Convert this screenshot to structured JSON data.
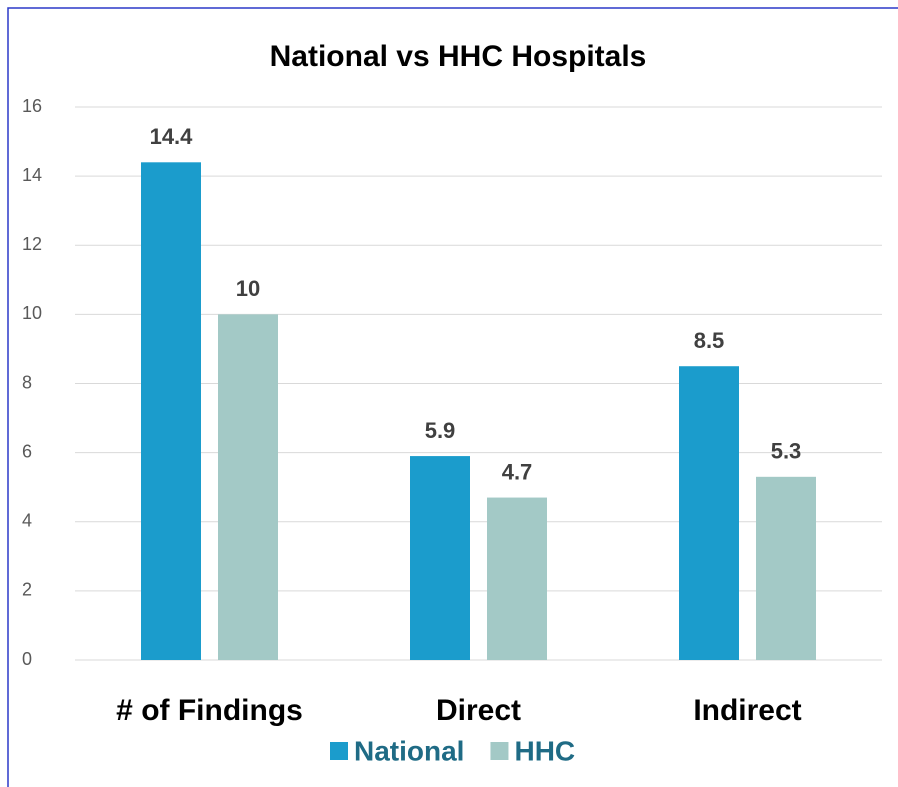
{
  "chart_data": {
    "type": "bar",
    "title": "National vs HHC Hospitals",
    "categories": [
      "# of Findings",
      "Direct",
      "Indirect"
    ],
    "series": [
      {
        "name": "National",
        "color": "#1b9ccc",
        "values": [
          14.4,
          5.9,
          8.5
        ]
      },
      {
        "name": "HHC",
        "color": "#a3c9c6",
        "values": [
          10,
          4.7,
          5.3
        ]
      }
    ],
    "ylim": [
      0,
      16
    ],
    "yticks": [
      0,
      2,
      4,
      6,
      8,
      10,
      12,
      14,
      16
    ],
    "grid": true,
    "legend": "bottom"
  }
}
